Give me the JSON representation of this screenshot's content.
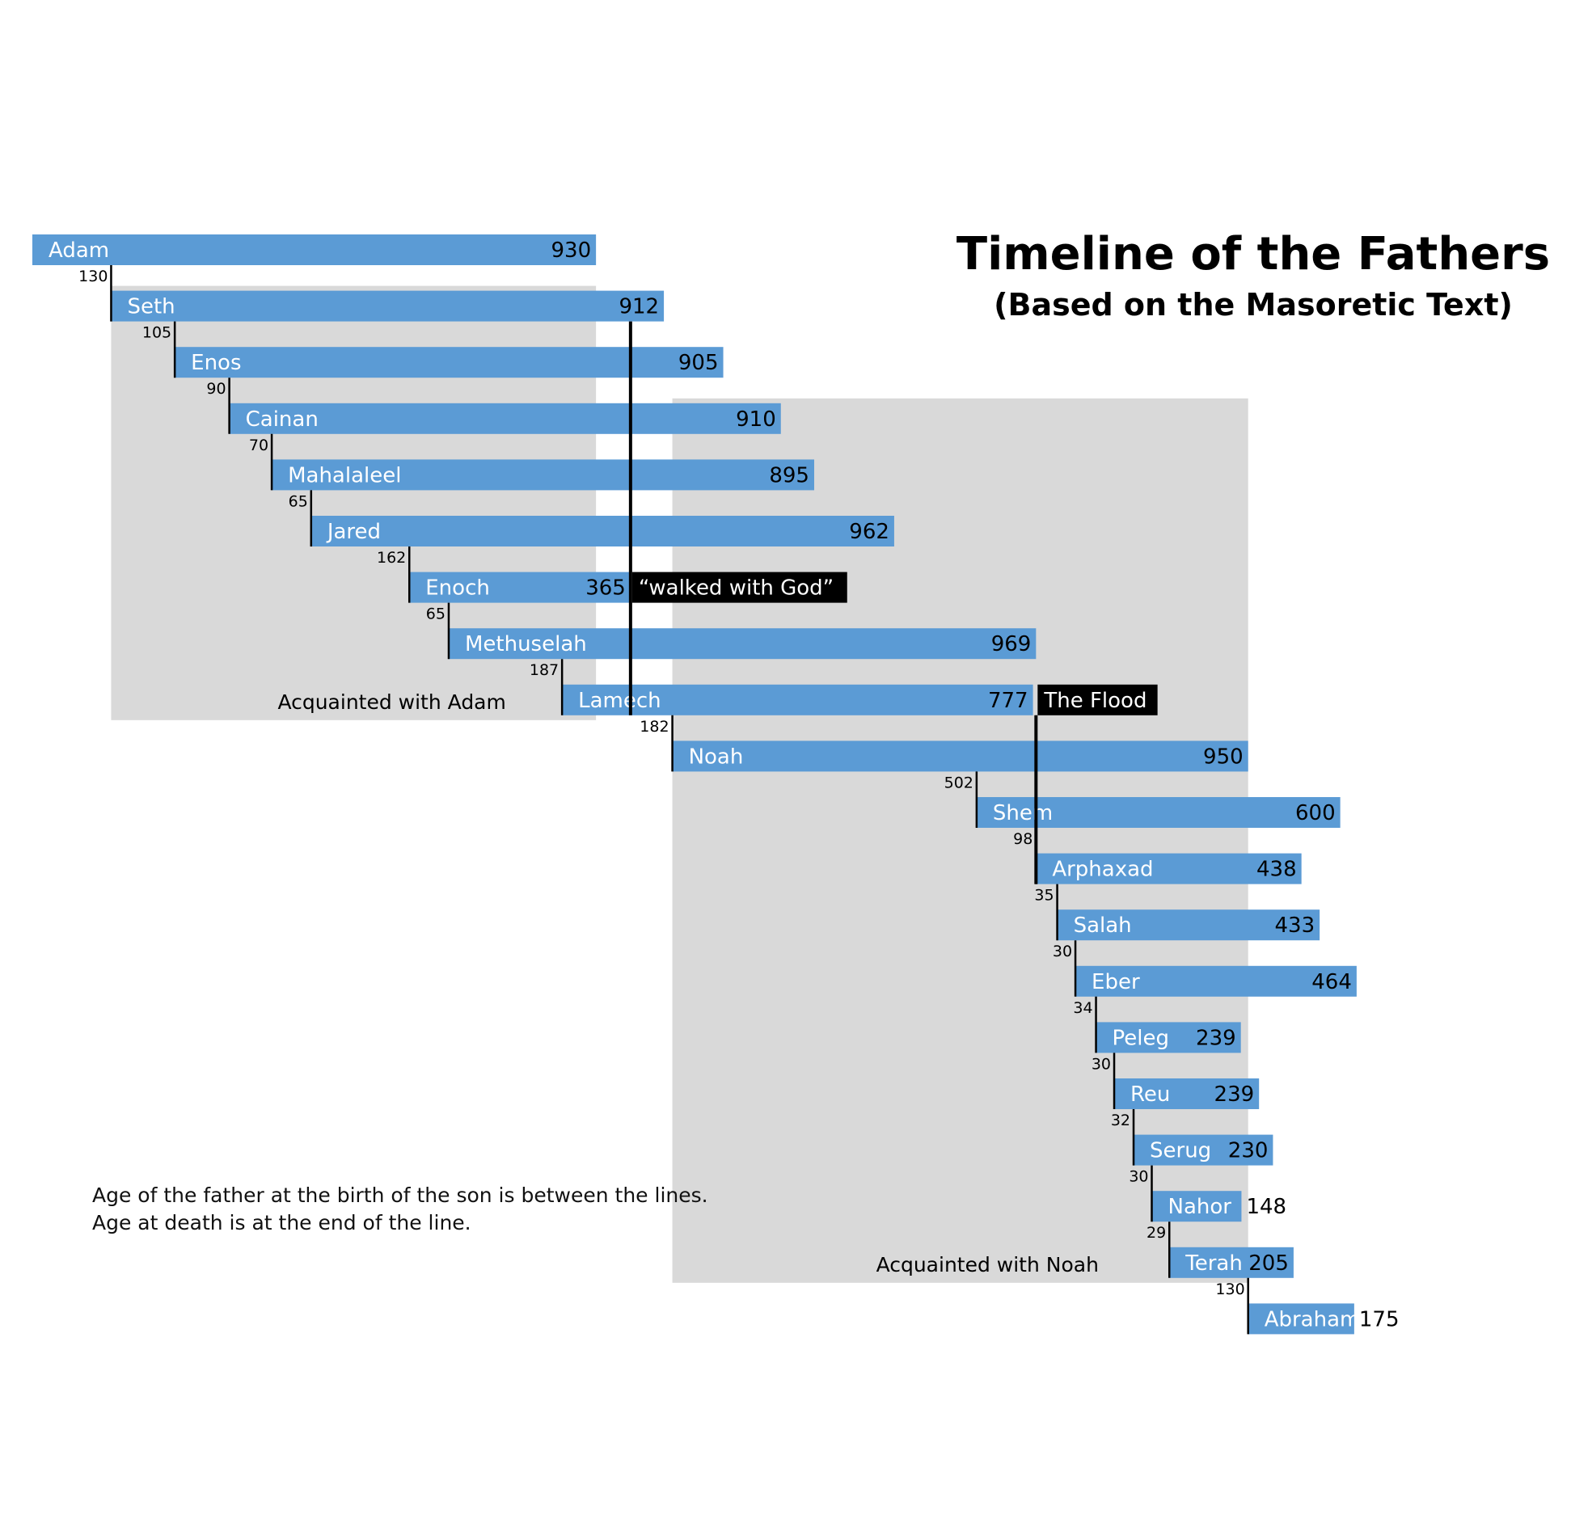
{
  "title": "Timeline of the Fathers",
  "subtitle": "(Based on the Masoretic Text)",
  "notes": [
    "Age of the father at the birth of the son is between the lines.",
    "Age at death is at the end of the line."
  ],
  "colors": {
    "bar": "#5b9bd5",
    "shade": "#d9d9d9",
    "marker": "#000000",
    "bar_text": "#ffffff",
    "text": "#000000"
  },
  "chart_data": {
    "type": "timeline-gantt",
    "x_unit": "years after creation",
    "rows": [
      {
        "name": "Adam",
        "birth": 0,
        "lifespan": 930,
        "father_age_at_birth": null
      },
      {
        "name": "Seth",
        "birth": 130,
        "lifespan": 912,
        "father_age_at_birth": "130"
      },
      {
        "name": "Enos",
        "birth": 235,
        "lifespan": 905,
        "father_age_at_birth": "105"
      },
      {
        "name": "Cainan",
        "birth": 325,
        "lifespan": 910,
        "father_age_at_birth": "90"
      },
      {
        "name": "Mahalaleel",
        "birth": 395,
        "lifespan": 895,
        "father_age_at_birth": "70"
      },
      {
        "name": "Jared",
        "birth": 460,
        "lifespan": 962,
        "father_age_at_birth": "65"
      },
      {
        "name": "Enoch",
        "birth": 622,
        "lifespan": 365,
        "father_age_at_birth": "162"
      },
      {
        "name": "Methuselah",
        "birth": 687,
        "lifespan": 969,
        "father_age_at_birth": "65"
      },
      {
        "name": "Lamech",
        "birth": 874,
        "lifespan": 777,
        "father_age_at_birth": "187"
      },
      {
        "name": "Noah",
        "birth": 1056,
        "lifespan": 950,
        "father_age_at_birth": "182"
      },
      {
        "name": "Shem",
        "birth": 1558,
        "lifespan": 600,
        "father_age_at_birth": "502"
      },
      {
        "name": "Arphaxad",
        "birth": 1656,
        "lifespan": 438,
        "father_age_at_birth": "98"
      },
      {
        "name": "Salah",
        "birth": 1691,
        "lifespan": 433,
        "father_age_at_birth": "35"
      },
      {
        "name": "Eber",
        "birth": 1721,
        "lifespan": 464,
        "father_age_at_birth": "30"
      },
      {
        "name": "Peleg",
        "birth": 1755,
        "lifespan": 239,
        "father_age_at_birth": "34"
      },
      {
        "name": "Reu",
        "birth": 1785,
        "lifespan": 239,
        "father_age_at_birth": "30"
      },
      {
        "name": "Serug",
        "birth": 1817,
        "lifespan": 230,
        "father_age_at_birth": "32"
      },
      {
        "name": "Nahor",
        "birth": 1847,
        "lifespan": 148,
        "father_age_at_birth": "30"
      },
      {
        "name": "Terah",
        "birth": 1876,
        "lifespan": 205,
        "father_age_at_birth": "29"
      },
      {
        "name": "Abraham",
        "birth": 2006,
        "lifespan": 175,
        "father_age_at_birth": "130"
      }
    ],
    "regions": [
      {
        "label": "Acquainted with Adam",
        "from_year": 130,
        "to_year": 930,
        "from_row": 1,
        "to_row": 8
      },
      {
        "label": "Acquainted with Noah",
        "from_year": 1056,
        "to_year": 2006,
        "from_row": 3,
        "to_row": 18
      }
    ],
    "events": [
      {
        "label": "“walked with God”",
        "year": 987,
        "from_row": 1,
        "to_row": 8,
        "label_row": 6
      },
      {
        "label": "The Flood",
        "year": 1656,
        "from_row": 8,
        "to_row": 11,
        "label_row": 8
      }
    ]
  }
}
